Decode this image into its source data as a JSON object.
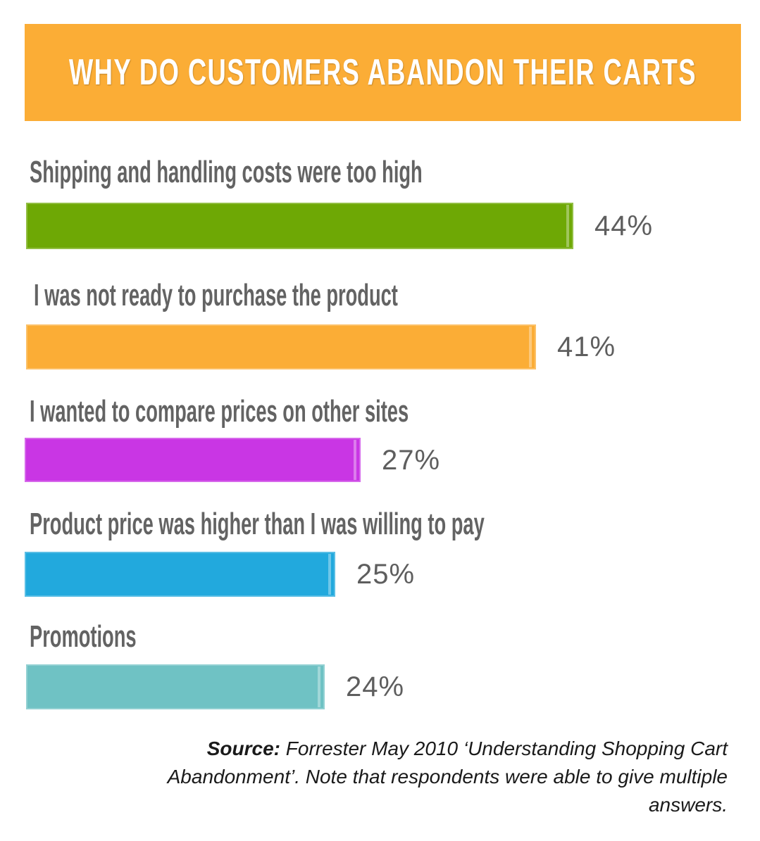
{
  "colors": {
    "header_bg": "#fbad36",
    "bar_colors": [
      "#6ea805",
      "#fbad36",
      "#c936e4",
      "#22a9dd",
      "#6fc2c4"
    ],
    "label": "#636363"
  },
  "chart_data": {
    "type": "bar",
    "title": "WHY DO CUSTOMERS ABANDON THEIR CARTS",
    "categories": [
      "Shipping and handling costs were too high",
      "I was not ready to purchase the product",
      "I wanted to compare prices on other sites",
      "Product price was higher than I was willing to pay",
      "Promotions"
    ],
    "values": [
      44,
      41,
      27,
      25,
      24
    ],
    "value_labels": [
      "44%",
      "41%",
      "27%",
      "25%",
      "24%"
    ],
    "orientation": "horizontal",
    "xlabel": "",
    "ylabel": "",
    "xlim": [
      0,
      50
    ],
    "grid": false
  },
  "source": {
    "label": "Source:",
    "text": "Forrester May 2010 ‘Understanding Shopping Cart Abandonment’. Note that respondents were able to give multiple answers."
  }
}
